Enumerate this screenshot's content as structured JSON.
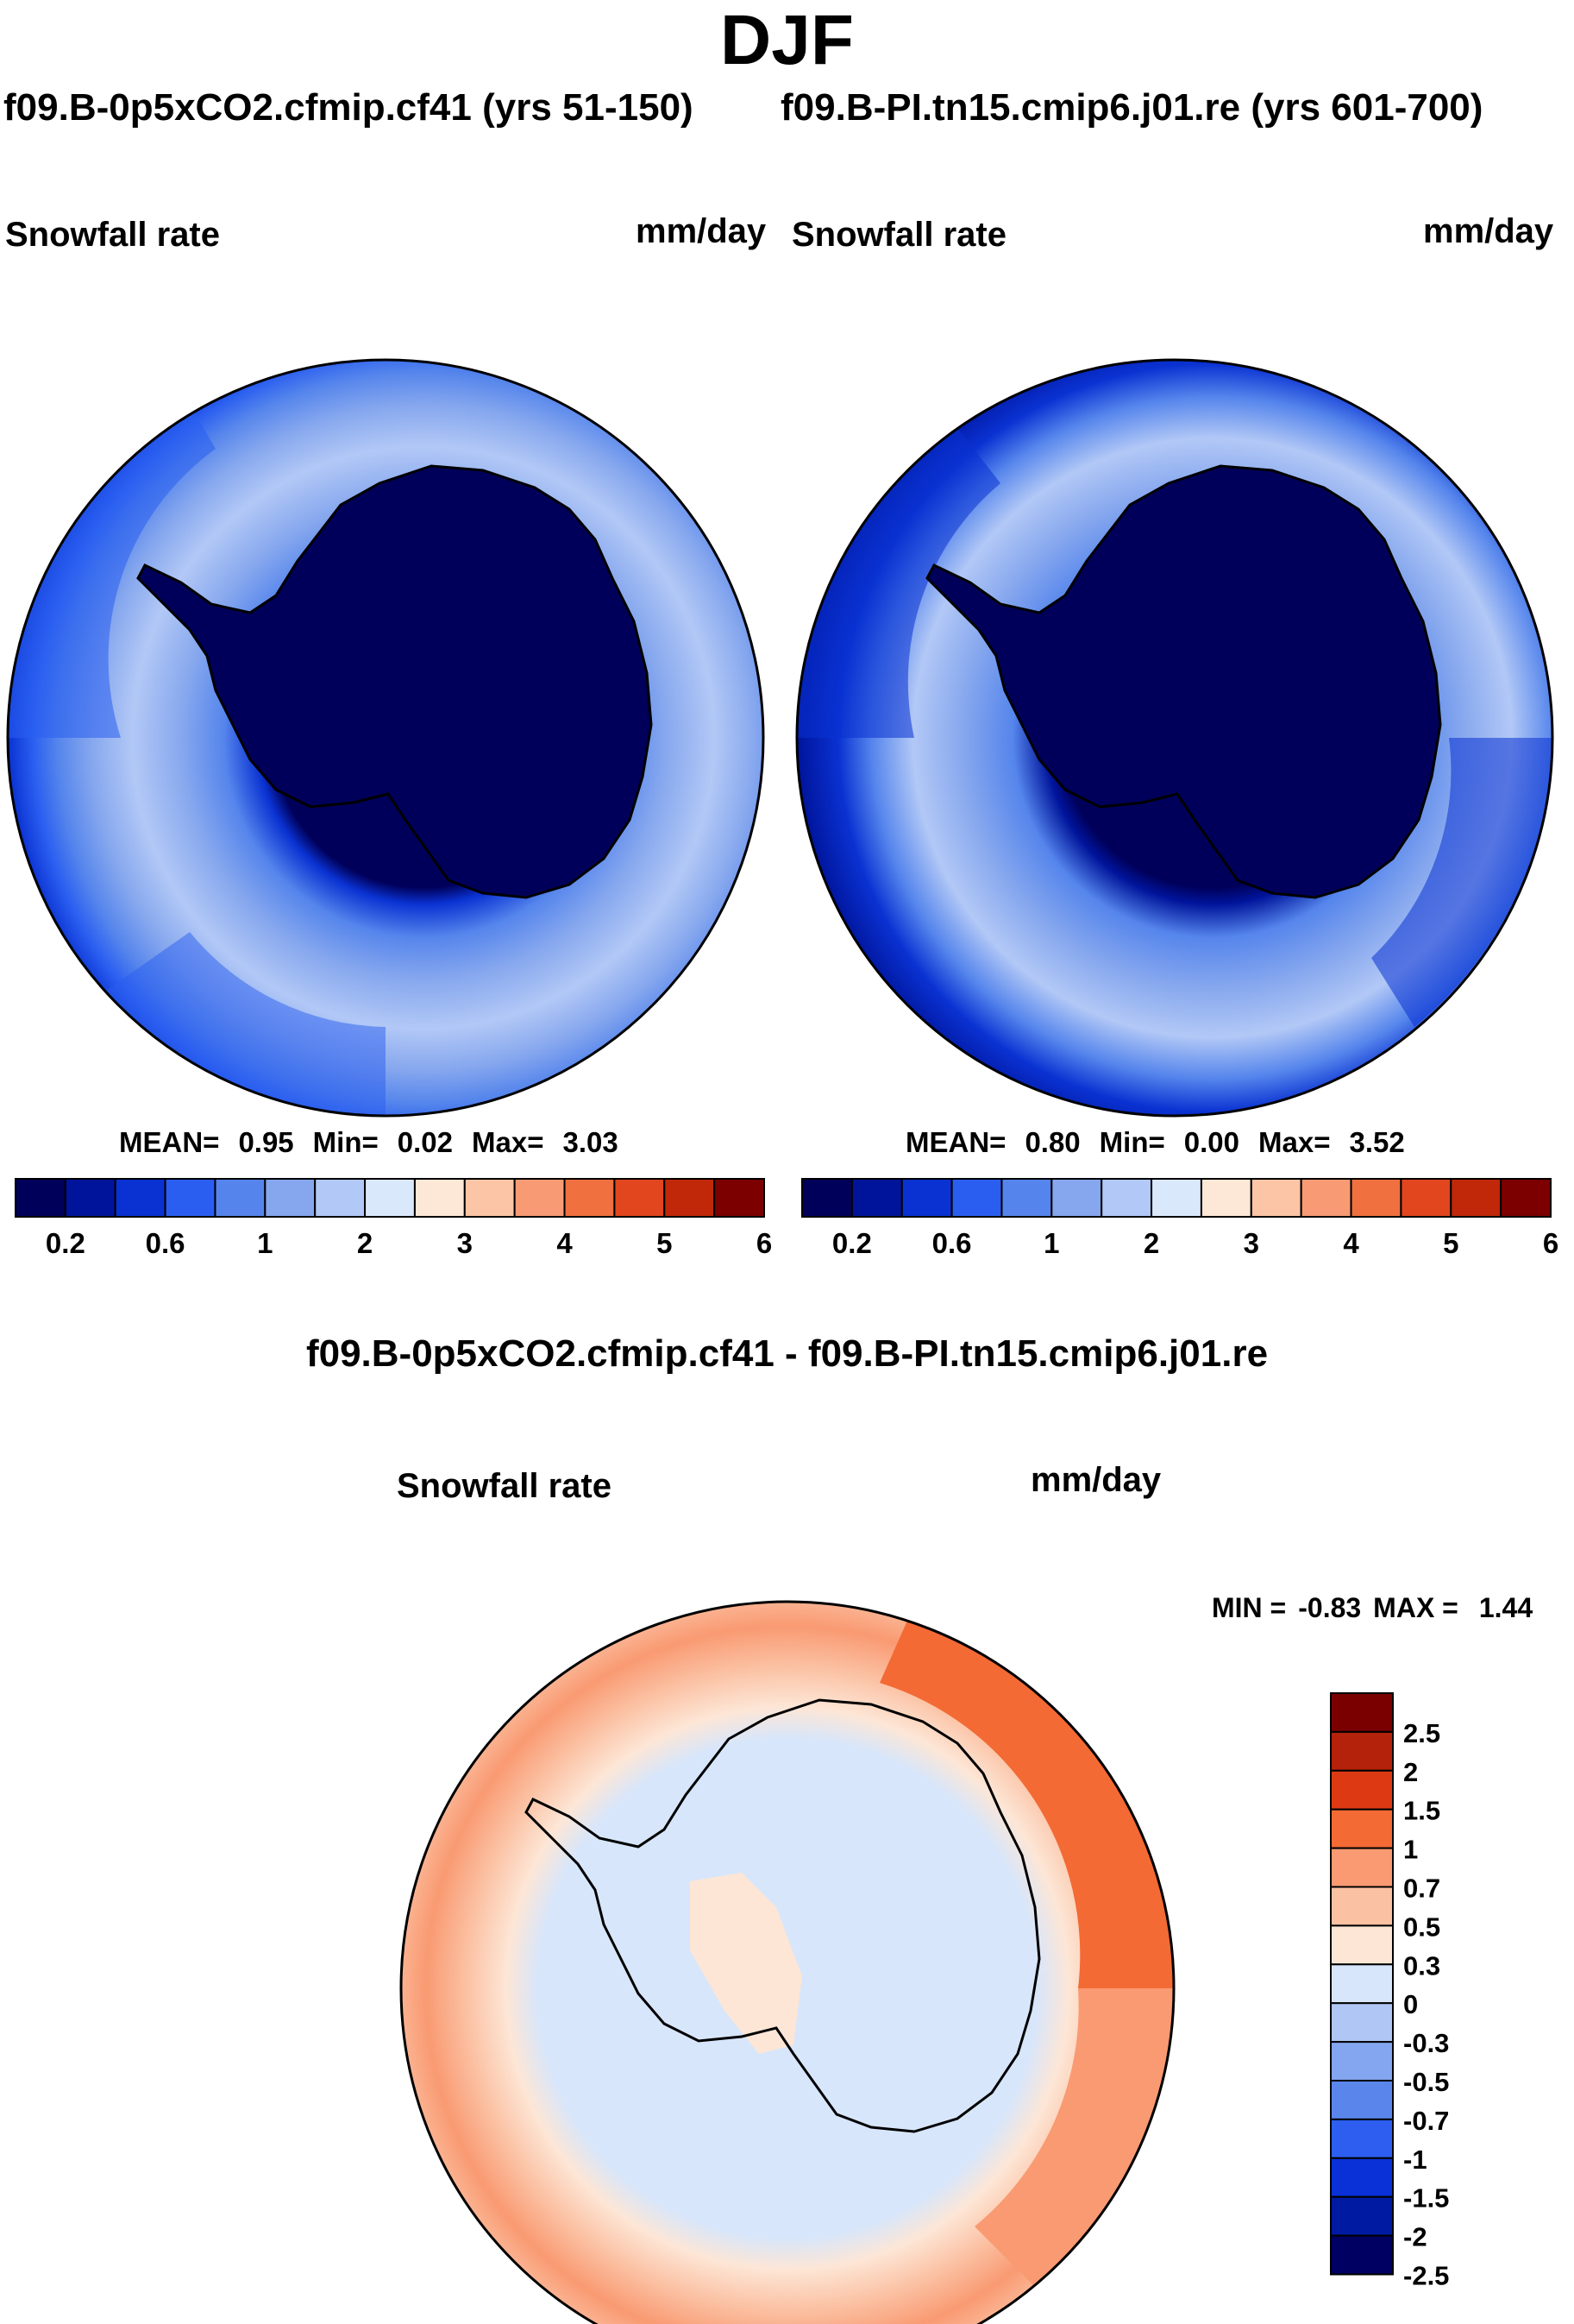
{
  "title": "DJF",
  "panels": [
    {
      "case_title": "f09.B-0p5xCO2.cfmip.cf41 (yrs 51-150)",
      "variable": "Snowfall rate",
      "units": "mm/day",
      "stats": {
        "mean_label": "MEAN=",
        "mean": "0.95",
        "min_label": "Min=",
        "min": "0.02",
        "max_label": "Max=",
        "max": "3.03"
      }
    },
    {
      "case_title": "f09.B-PI.tn15.cmip6.j01.re (yrs 601-700)",
      "variable": "Snowfall rate",
      "units": "mm/day",
      "stats": {
        "mean_label": "MEAN=",
        "mean": "0.80",
        "min_label": "Min=",
        "min": "0.00",
        "max_label": "Max=",
        "max": "3.52"
      }
    }
  ],
  "colorbar": {
    "colors": [
      "#00005a",
      "#00149b",
      "#0a32d2",
      "#2a5ef0",
      "#5585ec",
      "#86a7ee",
      "#b2c8f6",
      "#dae8fb",
      "#fde7d6",
      "#fbc5a6",
      "#f89b74",
      "#f0703f",
      "#e2461f",
      "#c12709",
      "#7c0000"
    ],
    "tick_labels": [
      "0.2",
      "0.6",
      "1",
      "2",
      "3",
      "4",
      "5",
      "6"
    ]
  },
  "difference": {
    "title": "f09.B-0p5xCO2.cfmip.cf41 - f09.B-PI.tn15.cmip6.j01.re",
    "variable": "Snowfall rate",
    "units": "mm/day",
    "stats": {
      "min_label": "MIN =",
      "min": "-0.83",
      "max_label": "MAX =",
      "max": "1.44"
    },
    "colorbar": {
      "colors": [
        "#7a0000",
        "#b5220b",
        "#dd3a14",
        "#f36a34",
        "#f99a72",
        "#fbc1a3",
        "#fde6d6",
        "#d7e6fb",
        "#b0c6f4",
        "#84a5ef",
        "#5a86eb",
        "#2d5ef0",
        "#0a30d8",
        "#001aa2",
        "#000062"
      ],
      "labels": [
        "2.5",
        "2",
        "1.5",
        "1",
        "0.7",
        "0.5",
        "0.3",
        "0",
        "-0.3",
        "-0.5",
        "-0.7",
        "-1",
        "-1.5",
        "-2",
        "-2.5"
      ]
    }
  }
}
